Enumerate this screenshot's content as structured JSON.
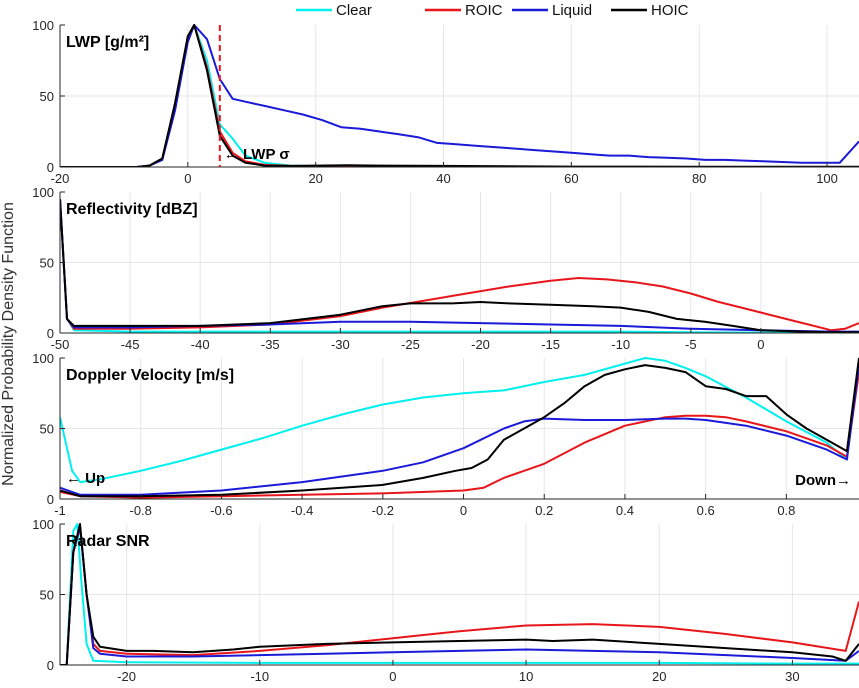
{
  "figure": {
    "ylabel": "Normalized Probability Density Function",
    "legend": {
      "placement": "top-center",
      "entries": [
        {
          "name": "Clear",
          "color": "#00f0f0"
        },
        {
          "name": "ROIC",
          "color": "#e8161b"
        },
        {
          "name": "Liquid",
          "color": "#1a1ad8"
        },
        {
          "name": "HOIC",
          "color": "#000000"
        }
      ]
    }
  },
  "chart_data": [
    {
      "type": "line",
      "title": "LWP [g/m²]",
      "xlim": [
        -20,
        105
      ],
      "ylim": [
        0,
        100
      ],
      "xticks": [
        -20,
        0,
        20,
        40,
        60,
        80,
        100
      ],
      "xtick_labels": [
        "-20",
        "0",
        "20",
        "40",
        "60",
        "80",
        "100"
      ],
      "yticks": [
        0,
        50,
        100
      ],
      "ytick_labels": [
        "0",
        "50",
        "100"
      ],
      "grid": true,
      "annotations": [
        {
          "text": "LWP σ",
          "x": 5,
          "type": "vertical-dashed-line",
          "color": "#e8161b",
          "arrow": "left"
        }
      ],
      "series": [
        {
          "name": "Clear",
          "color": "#00f0f0",
          "x": [
            -20,
            -8,
            -6,
            -4,
            -2,
            0,
            1,
            3,
            5,
            7,
            9,
            12,
            16,
            20,
            30,
            40,
            60,
            80,
            105
          ],
          "y": [
            0,
            0,
            1,
            6,
            45,
            92,
            100,
            75,
            30,
            20,
            8,
            3,
            1,
            0.5,
            0.2,
            0.1,
            0,
            0,
            0
          ]
        },
        {
          "name": "ROIC",
          "color": "#e8161b",
          "x": [
            -20,
            -8,
            -6,
            -4,
            -2,
            0,
            1,
            3,
            5,
            7,
            9,
            12,
            16,
            20,
            30,
            40,
            60,
            80,
            105
          ],
          "y": [
            0,
            0,
            1,
            6,
            45,
            92,
            100,
            70,
            25,
            10,
            4,
            1.5,
            0.8,
            0.5,
            0.3,
            0.2,
            0,
            0,
            0
          ]
        },
        {
          "name": "Liquid",
          "color": "#1a1ad8",
          "x": [
            -20,
            -8,
            -6,
            -4,
            -2,
            0,
            1,
            3,
            5,
            7,
            9,
            12,
            15,
            18,
            21,
            24,
            27,
            30,
            33,
            36,
            39,
            42,
            45,
            48,
            51,
            54,
            57,
            60,
            63,
            66,
            69,
            72,
            75,
            78,
            81,
            84,
            87,
            90,
            93,
            96,
            99,
            102,
            105
          ],
          "y": [
            0,
            0,
            1,
            5,
            40,
            88,
            100,
            90,
            62,
            48,
            46,
            43,
            40,
            37,
            33,
            28,
            27,
            25,
            23,
            21,
            17,
            16,
            15,
            14,
            13,
            12,
            11,
            10,
            9,
            8,
            8,
            7,
            6.5,
            6,
            5,
            5,
            4.5,
            4,
            3.5,
            3,
            3,
            3,
            18
          ]
        },
        {
          "name": "HOIC",
          "color": "#000000",
          "x": [
            -20,
            -8,
            -6,
            -4,
            -2,
            0,
            1,
            3,
            5,
            7,
            9,
            12,
            16,
            20,
            25,
            30,
            40,
            50,
            60,
            80,
            105
          ],
          "y": [
            0,
            0,
            1,
            6,
            45,
            92,
            100,
            68,
            22,
            8,
            3,
            1,
            0.8,
            1,
            1.2,
            1,
            0.8,
            0.5,
            0.3,
            0.2,
            0.2
          ]
        }
      ]
    },
    {
      "type": "line",
      "title": "Reflectivity [dBZ]",
      "xlim": [
        -50,
        7
      ],
      "ylim": [
        0,
        100
      ],
      "xticks": [
        -50,
        -45,
        -40,
        -35,
        -30,
        -25,
        -20,
        -15,
        -10,
        -5,
        0
      ],
      "xtick_labels": [
        "-50",
        "-45",
        "-40",
        "-35",
        "-30",
        "-25",
        "-20",
        "-15",
        "-10",
        "-5",
        "0"
      ],
      "yticks": [
        0,
        50,
        100
      ],
      "ytick_labels": [
        "0",
        "50",
        "100"
      ],
      "grid": true,
      "series": [
        {
          "name": "Clear",
          "color": "#00f0f0",
          "x": [
            -50,
            -49.5,
            -49,
            -45,
            -40,
            -35,
            -30,
            -25,
            -20,
            -15,
            -10,
            -5,
            0,
            7
          ],
          "y": [
            95,
            10,
            2,
            1,
            1,
            1,
            1,
            1,
            1,
            1,
            1,
            0.5,
            0.3,
            0.3
          ]
        },
        {
          "name": "ROIC",
          "color": "#e8161b",
          "x": [
            -50,
            -49.5,
            -49,
            -45,
            -40,
            -35,
            -30,
            -27,
            -24,
            -21,
            -18,
            -15,
            -13,
            -11,
            -9,
            -7,
            -5,
            -3,
            -1,
            1,
            3,
            5,
            6,
            7
          ],
          "y": [
            95,
            10,
            3,
            3,
            4,
            6,
            12,
            18,
            23,
            28,
            33,
            37,
            39,
            38,
            36,
            33,
            28,
            22,
            17,
            12,
            7,
            2,
            3,
            7
          ]
        },
        {
          "name": "Liquid",
          "color": "#1a1ad8",
          "x": [
            -50,
            -49.5,
            -49,
            -45,
            -40,
            -35,
            -30,
            -25,
            -20,
            -15,
            -10,
            -5,
            0,
            5,
            7
          ],
          "y": [
            95,
            10,
            4,
            4,
            5,
            6,
            8,
            8,
            7,
            6,
            5,
            3,
            2,
            1,
            1
          ]
        },
        {
          "name": "HOIC",
          "color": "#000000",
          "x": [
            -50,
            -49.5,
            -49,
            -45,
            -40,
            -35,
            -30,
            -27,
            -25,
            -22,
            -20,
            -18,
            -15,
            -12,
            -10,
            -8,
            -6,
            -4,
            -2,
            0,
            3,
            5,
            7
          ],
          "y": [
            95,
            10,
            5,
            5,
            5,
            7,
            13,
            19,
            21,
            21,
            22,
            21,
            20,
            19,
            18,
            15,
            10,
            8,
            5,
            2,
            1,
            0.5,
            0.5
          ]
        }
      ]
    },
    {
      "type": "line",
      "title": "Doppler Velocity [m/s]",
      "xlim": [
        -1,
        0.98
      ],
      "ylim": [
        0,
        100
      ],
      "xticks": [
        -1,
        -0.8,
        -0.6,
        -0.4,
        -0.2,
        0,
        0.2,
        0.4,
        0.6,
        0.8
      ],
      "xtick_labels": [
        "-1",
        "-0.8",
        "-0.6",
        "-0.4",
        "-0.2",
        "0",
        "0.2",
        "0.4",
        "0.6",
        "0.8"
      ],
      "yticks": [
        0,
        50,
        100
      ],
      "ytick_labels": [
        "0",
        "50",
        "100"
      ],
      "grid": true,
      "annotations": [
        {
          "text": "Up",
          "arrow": "left"
        },
        {
          "text": "Down",
          "arrow": "right"
        }
      ],
      "series": [
        {
          "name": "Clear",
          "color": "#00f0f0",
          "x": [
            -1,
            -0.97,
            -0.95,
            -0.9,
            -0.8,
            -0.7,
            -0.6,
            -0.5,
            -0.4,
            -0.3,
            -0.2,
            -0.1,
            0,
            0.05,
            0.1,
            0.2,
            0.3,
            0.4,
            0.45,
            0.5,
            0.55,
            0.6,
            0.7,
            0.8,
            0.9,
            0.95,
            0.98
          ],
          "y": [
            58,
            20,
            12,
            14,
            20,
            27,
            35,
            43,
            52,
            60,
            67,
            72,
            75,
            76,
            77,
            83,
            88,
            96,
            100,
            98,
            93,
            87,
            72,
            55,
            40,
            28,
            100
          ]
        },
        {
          "name": "ROIC",
          "color": "#e8161b",
          "x": [
            -1,
            -0.95,
            -0.8,
            -0.6,
            -0.4,
            -0.2,
            0,
            0.05,
            0.1,
            0.2,
            0.3,
            0.4,
            0.5,
            0.55,
            0.6,
            0.65,
            0.7,
            0.8,
            0.9,
            0.95,
            0.98
          ],
          "y": [
            5,
            2,
            1,
            2,
            3,
            4,
            6,
            8,
            15,
            25,
            40,
            52,
            58,
            59,
            59,
            58,
            55,
            48,
            38,
            30,
            90
          ]
        },
        {
          "name": "Liquid",
          "color": "#1a1ad8",
          "x": [
            -1,
            -0.95,
            -0.8,
            -0.6,
            -0.4,
            -0.2,
            -0.1,
            0,
            0.1,
            0.15,
            0.2,
            0.3,
            0.4,
            0.5,
            0.55,
            0.6,
            0.7,
            0.8,
            0.9,
            0.95,
            0.98
          ],
          "y": [
            8,
            3,
            3,
            6,
            12,
            20,
            26,
            36,
            50,
            55,
            57,
            56,
            56,
            57,
            57,
            56,
            52,
            45,
            35,
            28,
            95
          ]
        },
        {
          "name": "HOIC",
          "color": "#000000",
          "x": [
            -1,
            -0.95,
            -0.8,
            -0.6,
            -0.4,
            -0.2,
            -0.1,
            -0.02,
            0.02,
            0.06,
            0.1,
            0.15,
            0.2,
            0.25,
            0.3,
            0.35,
            0.4,
            0.45,
            0.5,
            0.55,
            0.6,
            0.65,
            0.7,
            0.75,
            0.8,
            0.85,
            0.9,
            0.95,
            0.98
          ],
          "y": [
            6,
            2,
            2,
            3,
            6,
            10,
            15,
            20,
            22,
            28,
            42,
            50,
            58,
            68,
            80,
            88,
            92,
            95,
            93,
            90,
            80,
            78,
            73,
            73,
            60,
            50,
            42,
            34,
            100
          ]
        }
      ]
    },
    {
      "type": "line",
      "title": "Radar SNR",
      "xlim": [
        -25,
        35
      ],
      "ylim": [
        0,
        100
      ],
      "xticks": [
        -20,
        -10,
        0,
        10,
        20,
        30
      ],
      "xtick_labels": [
        "-20",
        "-10",
        "0",
        "10",
        "20",
        "30"
      ],
      "yticks": [
        0,
        50,
        100
      ],
      "ytick_labels": [
        "0",
        "50",
        "100"
      ],
      "grid": true,
      "series": [
        {
          "name": "Clear",
          "color": "#00f0f0",
          "x": [
            -25,
            -24.5,
            -24,
            -23.7,
            -23.4,
            -23,
            -22.5,
            -20,
            -10,
            0,
            10,
            20,
            30,
            34,
            35
          ],
          "y": [
            0,
            0,
            95,
            100,
            60,
            15,
            3,
            2,
            1.5,
            1.5,
            1.5,
            1.5,
            1,
            1,
            1
          ]
        },
        {
          "name": "ROIC",
          "color": "#e8161b",
          "x": [
            -25,
            -24.5,
            -24,
            -23.5,
            -23,
            -22.5,
            -22,
            -20,
            -15,
            -10,
            -5,
            0,
            5,
            10,
            15,
            20,
            25,
            30,
            34,
            35
          ],
          "y": [
            0,
            0,
            80,
            98,
            50,
            15,
            10,
            8,
            7,
            10,
            14,
            19,
            24,
            28,
            29,
            27,
            22,
            16,
            10,
            45
          ]
        },
        {
          "name": "Liquid",
          "color": "#1a1ad8",
          "x": [
            -25,
            -24.5,
            -24,
            -23.5,
            -23,
            -22.5,
            -22,
            -20,
            -15,
            -10,
            -5,
            0,
            5,
            10,
            15,
            20,
            25,
            30,
            34,
            35
          ],
          "y": [
            0,
            0,
            80,
            98,
            50,
            12,
            8,
            6,
            6,
            7,
            8,
            9,
            10,
            11,
            10,
            9,
            7,
            5,
            3,
            10
          ]
        },
        {
          "name": "HOIC",
          "color": "#000000",
          "x": [
            -25,
            -24.5,
            -24,
            -23.5,
            -23,
            -22.5,
            -22,
            -20,
            -18,
            -15,
            -12,
            -10,
            -5,
            0,
            5,
            10,
            12,
            15,
            20,
            25,
            30,
            33,
            34,
            35
          ],
          "y": [
            0,
            0,
            80,
            100,
            50,
            20,
            13,
            10,
            10,
            9,
            11,
            13,
            15,
            16,
            17,
            18,
            17,
            18,
            15,
            12,
            9,
            6,
            3,
            15
          ]
        }
      ]
    }
  ]
}
